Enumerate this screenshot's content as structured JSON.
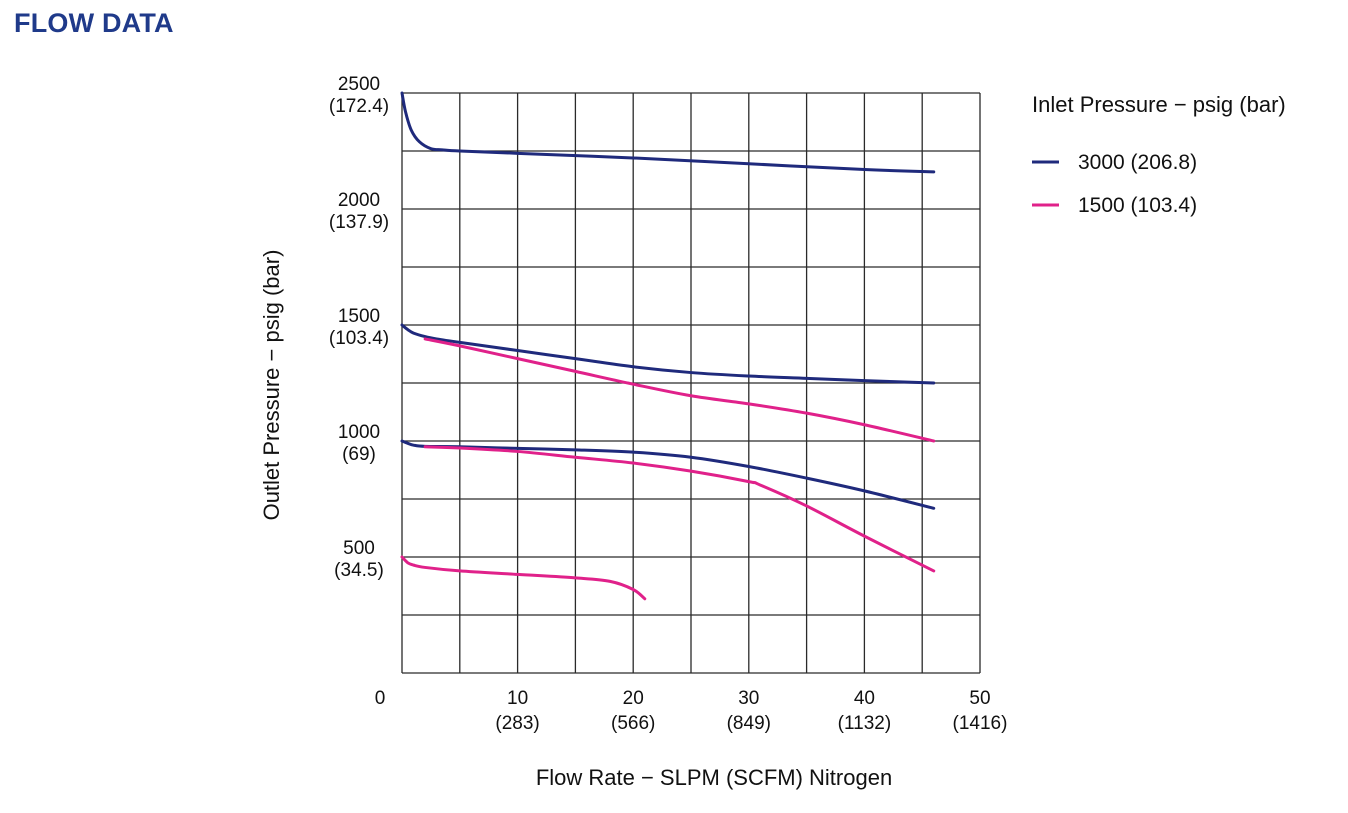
{
  "page": {
    "title": "FLOW DATA"
  },
  "colors": {
    "series_3000": "#1F2A7C",
    "series_1500": "#E0218A",
    "grid": "#2a2a2a",
    "title": "#1F3A8A"
  },
  "chart_data": {
    "type": "line",
    "title": "",
    "xlabel": "Flow Rate − SLPM (SCFM) Nitrogen",
    "ylabel": "Outlet Pressure − psig (bar)",
    "xlim": [
      0,
      50
    ],
    "ylim": [
      0,
      2500
    ],
    "grid": true,
    "x_grid_step": 5,
    "y_grid_step": 250,
    "x_ticks": [
      {
        "value": 0,
        "primary": "0",
        "secondary": ""
      },
      {
        "value": 10,
        "primary": "10",
        "secondary": "(283)"
      },
      {
        "value": 20,
        "primary": "20",
        "secondary": "(566)"
      },
      {
        "value": 30,
        "primary": "30",
        "secondary": "(849)"
      },
      {
        "value": 40,
        "primary": "40",
        "secondary": "(1132)"
      },
      {
        "value": 50,
        "primary": "50",
        "secondary": "(1416)"
      }
    ],
    "y_ticks": [
      {
        "value": 2500,
        "primary": "2500",
        "secondary": "(172.4)"
      },
      {
        "value": 2000,
        "primary": "2000",
        "secondary": "(137.9)"
      },
      {
        "value": 1500,
        "primary": "1500",
        "secondary": "(103.4)"
      },
      {
        "value": 1000,
        "primary": "1000",
        "secondary": "(69)"
      },
      {
        "value": 500,
        "primary": "500",
        "secondary": "(34.5)"
      }
    ],
    "legend": {
      "title": "Inlet Pressure − psig (bar)",
      "placement": "right",
      "entries": [
        {
          "label": "3000 (206.8)",
          "series": "3000"
        },
        {
          "label": "1500 (103.4)",
          "series": "1500"
        }
      ]
    },
    "series": [
      {
        "name": "3000 (206.8)",
        "key": "3000",
        "color": "#1F2A7C",
        "x": [
          0,
          0.3,
          0.8,
          1.5,
          2.5,
          3.5,
          5,
          10,
          20,
          30,
          40,
          46
        ],
        "y": [
          2500,
          2420,
          2340,
          2290,
          2260,
          2255,
          2250,
          2240,
          2220,
          2195,
          2170,
          2160
        ]
      },
      {
        "name": "3000 (206.8)",
        "key": "3000",
        "color": "#1F2A7C",
        "x": [
          0,
          0.5,
          1,
          2,
          3,
          5,
          10,
          15,
          20,
          25,
          30,
          35,
          40,
          46
        ],
        "y": [
          1500,
          1480,
          1465,
          1450,
          1440,
          1425,
          1390,
          1355,
          1320,
          1295,
          1280,
          1270,
          1260,
          1250
        ]
      },
      {
        "name": "3000 (206.8)",
        "key": "3000",
        "color": "#1F2A7C",
        "x": [
          0,
          0.5,
          1,
          2,
          5,
          10,
          15,
          20,
          25,
          30,
          35,
          40,
          46
        ],
        "y": [
          1000,
          990,
          982,
          977,
          975,
          968,
          962,
          952,
          930,
          890,
          840,
          785,
          710
        ]
      },
      {
        "name": "1500 (103.4)",
        "key": "1500",
        "color": "#E0218A",
        "x": [
          2,
          5,
          10,
          15,
          20,
          25,
          30,
          35,
          40,
          46
        ],
        "y": [
          1440,
          1410,
          1355,
          1300,
          1245,
          1195,
          1160,
          1120,
          1070,
          1000
        ]
      },
      {
        "name": "1500 (103.4)",
        "key": "1500",
        "color": "#E0218A",
        "x": [
          2,
          5,
          10,
          15,
          20,
          25,
          30,
          31,
          35,
          40,
          46
        ],
        "y": [
          975,
          970,
          955,
          930,
          905,
          870,
          825,
          810,
          720,
          590,
          440
        ]
      },
      {
        "name": "1500 (103.4)",
        "key": "1500",
        "color": "#E0218A",
        "x": [
          0,
          0.5,
          1,
          2,
          5,
          10,
          15,
          18,
          20,
          21
        ],
        "y": [
          500,
          475,
          465,
          455,
          440,
          425,
          410,
          395,
          360,
          320
        ]
      }
    ]
  }
}
